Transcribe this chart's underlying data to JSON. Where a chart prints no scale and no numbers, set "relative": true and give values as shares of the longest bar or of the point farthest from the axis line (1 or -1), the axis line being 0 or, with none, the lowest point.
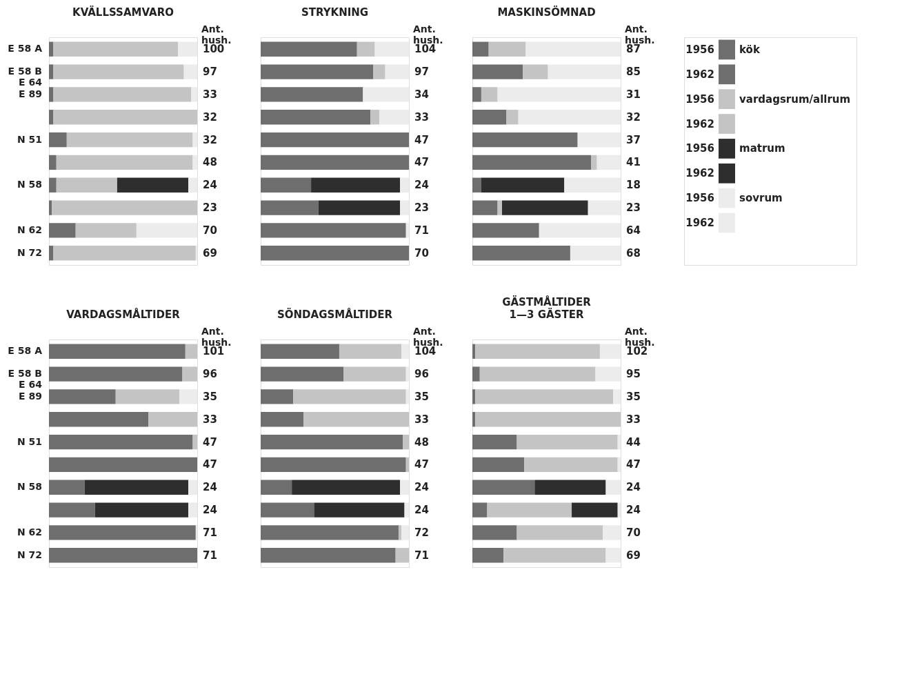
{
  "chart_data": [
    {
      "type": "bar",
      "orientation": "horizontal",
      "stacked": true,
      "relative": true,
      "title": "KVÄLLSSAMVARO",
      "y2label": "Ant.\nhush.",
      "legend": false,
      "categories": [
        "E 58 A",
        "E 58 B\nE 64",
        "E 89",
        null,
        "N 51",
        null,
        "N 58",
        null,
        "N 62",
        "N 72"
      ],
      "series": [
        {
          "color": "#6e6e6e",
          "values": [
            0.03,
            0.03,
            0.03,
            0.03,
            0.12,
            0.05,
            0.05,
            0.02,
            0.18,
            0.03
          ]
        },
        {
          "color": "#c4c4c4",
          "values": [
            0.84,
            0.88,
            0.93,
            0.97,
            0.85,
            0.92,
            0.41,
            0.98,
            0.41,
            0.96
          ]
        },
        {
          "color": "#2e2e2e",
          "values": [
            null,
            null,
            null,
            null,
            null,
            null,
            0.48,
            null,
            null,
            null
          ]
        },
        {
          "color": "#ececec",
          "values": [
            0.13,
            0.09,
            0.04,
            null,
            0.03,
            0.03,
            0.06,
            null,
            0.41,
            0.01
          ]
        }
      ],
      "y2_categories": [
        "100",
        "97",
        "33",
        "32",
        "32",
        "48",
        "24",
        "23",
        "70",
        "69"
      ]
    },
    {
      "type": "bar",
      "orientation": "horizontal",
      "stacked": true,
      "relative": true,
      "title": "STRYKNING",
      "y2label": "Ant.\nhush.",
      "legend": false,
      "categories": [
        null,
        null,
        null,
        null,
        null,
        null,
        null,
        null,
        null,
        null
      ],
      "series": [
        {
          "color": "#6e6e6e",
          "values": [
            0.65,
            0.76,
            0.69,
            0.74,
            1.0,
            1.0,
            0.34,
            0.39,
            0.98,
            1.0
          ]
        },
        {
          "color": "#c4c4c4",
          "values": [
            0.12,
            0.08,
            null,
            0.06,
            null,
            null,
            null,
            null,
            null,
            null
          ]
        },
        {
          "color": "#2e2e2e",
          "values": [
            null,
            null,
            null,
            null,
            null,
            null,
            0.6,
            0.55,
            null,
            null
          ]
        },
        {
          "color": "#ececec",
          "values": [
            0.23,
            0.16,
            0.31,
            0.2,
            null,
            null,
            0.06,
            0.06,
            0.02,
            null
          ]
        }
      ],
      "y2_categories": [
        "104",
        "97",
        "34",
        "33",
        "47",
        "47",
        "24",
        "23",
        "71",
        "70"
      ]
    },
    {
      "type": "bar",
      "orientation": "horizontal",
      "stacked": true,
      "relative": true,
      "title": "MASKINSÖMNAD",
      "y2label": "Ant.\nhush.",
      "legend": "right",
      "annotations": [
        "1956",
        "1962"
      ],
      "categories": [
        null,
        null,
        null,
        null,
        null,
        null,
        null,
        null,
        null,
        null
      ],
      "series": [
        {
          "name": "kök",
          "color": "#6e6e6e",
          "values": [
            0.11,
            0.34,
            0.06,
            0.23,
            0.71,
            0.8,
            0.06,
            0.17,
            0.45,
            0.66
          ]
        },
        {
          "name": "vardagsrum/allrum",
          "color": "#c4c4c4",
          "values": [
            0.25,
            0.17,
            0.11,
            0.08,
            null,
            0.04,
            null,
            0.03,
            null,
            null
          ]
        },
        {
          "name": "matrum",
          "color": "#2e2e2e",
          "values": [
            null,
            null,
            null,
            null,
            null,
            null,
            0.56,
            0.58,
            null,
            null
          ]
        },
        {
          "name": "sovrum",
          "color": "#ececec",
          "values": [
            0.64,
            0.49,
            0.83,
            0.69,
            0.29,
            0.16,
            0.38,
            0.22,
            0.55,
            0.34
          ]
        }
      ],
      "y2_categories": [
        "87",
        "85",
        "31",
        "32",
        "37",
        "41",
        "18",
        "23",
        "64",
        "68"
      ]
    },
    {
      "type": "bar",
      "orientation": "horizontal",
      "stacked": true,
      "relative": true,
      "title": "VARDAGSMÅLTIDER",
      "y2label": "Ant.\nhush.",
      "legend": false,
      "categories": [
        "E 58 A",
        "E 58 B\nE 64",
        "E 89",
        null,
        "N 51",
        null,
        "N 58",
        null,
        "N 62",
        "N 72"
      ],
      "series": [
        {
          "color": "#6e6e6e",
          "values": [
            0.92,
            0.9,
            0.45,
            0.67,
            0.97,
            1.0,
            0.24,
            0.31,
            0.99,
            1.0
          ]
        },
        {
          "color": "#c4c4c4",
          "values": [
            0.08,
            0.1,
            0.43,
            0.33,
            0.03,
            null,
            null,
            null,
            null,
            null
          ]
        },
        {
          "color": "#2e2e2e",
          "values": [
            null,
            null,
            null,
            null,
            null,
            null,
            0.7,
            0.63,
            null,
            null
          ]
        },
        {
          "color": "#ececec",
          "values": [
            null,
            null,
            0.12,
            null,
            null,
            null,
            0.06,
            0.06,
            0.01,
            null
          ]
        }
      ],
      "y2_categories": [
        "101",
        "96",
        "35",
        "33",
        "47",
        "47",
        "24",
        "24",
        "71",
        "71"
      ]
    },
    {
      "type": "bar",
      "orientation": "horizontal",
      "stacked": true,
      "relative": true,
      "title": "SÖNDAGSMÅLTIDER",
      "y2label": "Ant.\nhush.",
      "legend": false,
      "categories": [
        null,
        null,
        null,
        null,
        null,
        null,
        null,
        null,
        null,
        null
      ],
      "series": [
        {
          "color": "#6e6e6e",
          "values": [
            0.53,
            0.56,
            0.22,
            0.29,
            0.96,
            0.98,
            0.21,
            0.36,
            0.93,
            0.91
          ]
        },
        {
          "color": "#c4c4c4",
          "values": [
            0.42,
            0.42,
            0.76,
            0.71,
            0.04,
            0.02,
            null,
            null,
            0.02,
            0.09
          ]
        },
        {
          "color": "#2e2e2e",
          "values": [
            null,
            null,
            null,
            null,
            null,
            null,
            0.73,
            0.61,
            null,
            null
          ]
        },
        {
          "color": "#ececec",
          "values": [
            0.05,
            0.02,
            0.02,
            null,
            null,
            null,
            0.06,
            0.03,
            0.05,
            null
          ]
        }
      ],
      "y2_categories": [
        "104",
        "96",
        "35",
        "33",
        "48",
        "47",
        "24",
        "24",
        "72",
        "71"
      ]
    },
    {
      "type": "bar",
      "orientation": "horizontal",
      "stacked": true,
      "relative": true,
      "title": "GÄSTMÅLTIDER",
      "subtitle": "1—3 GÄSTER",
      "y2label": "Ant.\nhush.",
      "legend": false,
      "categories": [
        null,
        null,
        null,
        null,
        null,
        null,
        null,
        null,
        null,
        null
      ],
      "series": [
        {
          "color": "#6e6e6e",
          "values": [
            0.02,
            0.05,
            0.02,
            0.02,
            0.3,
            0.35,
            0.42,
            0.1,
            0.3,
            0.21
          ]
        },
        {
          "color": "#c4c4c4",
          "values": [
            0.84,
            0.78,
            0.93,
            0.98,
            0.68,
            0.63,
            null,
            0.57,
            0.58,
            0.69
          ]
        },
        {
          "color": "#2e2e2e",
          "values": [
            null,
            null,
            null,
            null,
            null,
            null,
            0.48,
            0.31,
            null,
            null
          ]
        },
        {
          "color": "#ececec",
          "values": [
            0.14,
            0.17,
            0.05,
            null,
            0.02,
            0.02,
            0.1,
            0.02,
            0.12,
            0.1
          ]
        }
      ],
      "y2_categories": [
        "102",
        "95",
        "35",
        "33",
        "44",
        "47",
        "24",
        "24",
        "70",
        "69"
      ]
    }
  ]
}
